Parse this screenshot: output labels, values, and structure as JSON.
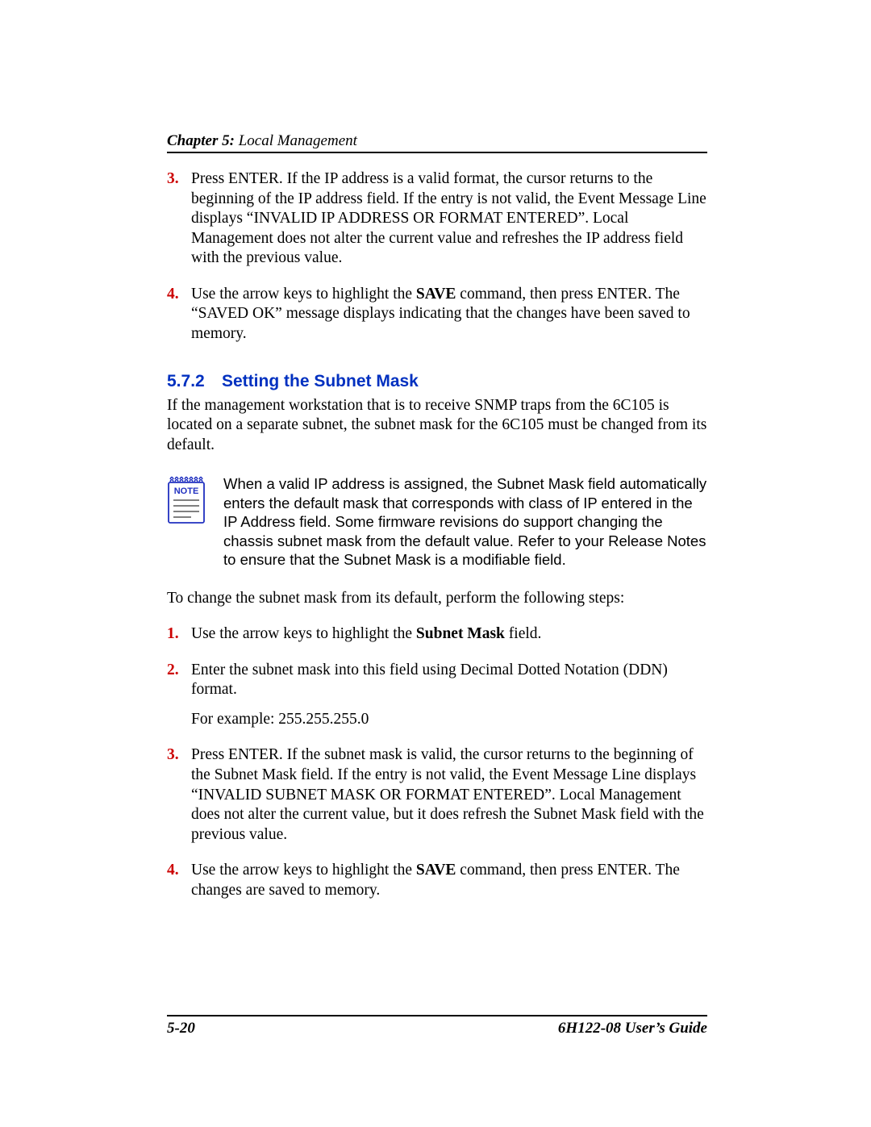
{
  "header": {
    "chapter_label": "Chapter 5:",
    "chapter_title": " Local Management"
  },
  "list_a": [
    {
      "num": "3.",
      "paras": [
        "Press ENTER. If the IP address is a valid format, the cursor returns to the beginning of the IP address field. If the entry is not valid, the Event Message Line displays “INVALID IP ADDRESS OR FORMAT ENTERED”. Local Management does not alter the current value and refreshes the IP address field with the previous value."
      ]
    },
    {
      "num": "4.",
      "paras": [
        {
          "parts": [
            "Use the arrow keys to highlight the ",
            {
              "bold": "SAVE"
            },
            " command, then press ENTER. The “SAVED OK” message displays indicating that the changes have been saved to memory."
          ]
        }
      ]
    }
  ],
  "section": {
    "number": "5.7.2",
    "title": "Setting the Subnet Mask"
  },
  "section_intro": "If the management workstation that is to receive SNMP traps from the 6C105 is located on a separate subnet, the subnet mask for the 6C105 must be changed from its default.",
  "note": {
    "label": "NOTE",
    "text": "When a valid IP address is assigned, the Subnet Mask field automatically enters the default mask that corresponds with class of IP entered in the IP Address field. Some firmware revisions do support changing the chassis subnet mask from the default value. Refer to your Release Notes to ensure that the Subnet Mask is a modifiable field.",
    "colors": {
      "border": "#2030c0",
      "label": "#2030c0",
      "lines": "#808080"
    }
  },
  "lead": "To change the subnet mask from its default, perform the following steps:",
  "list_b": [
    {
      "num": "1.",
      "paras": [
        {
          "parts": [
            "Use the arrow keys to highlight the ",
            {
              "bold": "Subnet Mask"
            },
            " field."
          ]
        }
      ]
    },
    {
      "num": "2.",
      "paras": [
        "Enter the subnet mask into this field using Decimal Dotted Notation (DDN) format.",
        "For example: 255.255.255.0"
      ]
    },
    {
      "num": "3.",
      "paras": [
        "Press ENTER. If the subnet mask is valid, the cursor returns to the beginning of the Subnet Mask field. If the entry is not valid, the Event Message Line displays “INVALID SUBNET MASK OR FORMAT ENTERED”. Local Management does not alter the current value, but it does refresh the Subnet Mask field with the previous value."
      ]
    },
    {
      "num": "4.",
      "paras": [
        {
          "parts": [
            "Use the arrow keys to highlight the ",
            {
              "bold": "SAVE"
            },
            " command, then press ENTER. The changes are saved to memory."
          ]
        }
      ]
    }
  ],
  "footer": {
    "left": "5-20",
    "right": "6H122-08 User’s Guide"
  },
  "colors": {
    "accent_red": "#cc0000",
    "accent_blue": "#0030c0",
    "text": "#000000",
    "bg": "#ffffff"
  }
}
